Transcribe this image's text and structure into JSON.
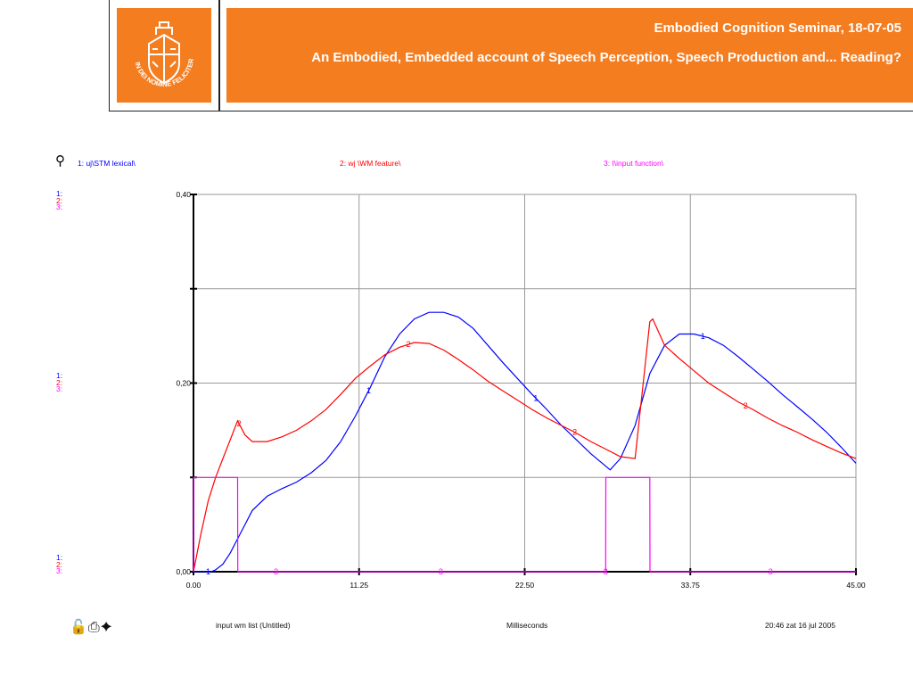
{
  "header": {
    "title_line1": "Embodied Cognition Seminar, 18-07-05",
    "title_line2": "An Embodied, Embedded account of Speech Perception, Speech Production and... Reading?",
    "logo_text": "IN DEI NOMINE FELICITER",
    "accent_color": "#f47d20"
  },
  "legend": {
    "item1": "1: uj\\STM lexical\\",
    "item2": "2: wj \\WM feature\\",
    "item3": "3: I\\input function\\",
    "icon": "pin-icon"
  },
  "scale_markers": {
    "m1": "1:",
    "m2": "2:",
    "m3": "3:"
  },
  "footer": {
    "icons": "lock-icon print-icon wand-icon",
    "left": "input wm list (Untitled)",
    "center": "Milliseconds",
    "right": "20:46   zat 16 jul 2005"
  },
  "chart_data": {
    "type": "line",
    "title": "",
    "xlabel": "Milliseconds",
    "ylabel": "",
    "xlim": [
      0,
      45
    ],
    "ylim": [
      0,
      0.4
    ],
    "x_ticks": [
      "0.00",
      "11.25",
      "22.50",
      "33.75",
      "45.00"
    ],
    "y_ticks": [
      "0,00",
      "0,20",
      "0,40"
    ],
    "grid": true,
    "legend_position": "top",
    "colors": {
      "series1": "#0000ff",
      "series2": "#ff0000",
      "series3": "#ff00ff"
    },
    "series": [
      {
        "name": "1: uj\\STM lexical\\",
        "marker": "1",
        "x": [
          0,
          1.2,
          1.5,
          2,
          2.5,
          3,
          3.5,
          4,
          5,
          6,
          7,
          8,
          9,
          10,
          11,
          12,
          13,
          14,
          15,
          16,
          17,
          18,
          19,
          20,
          21,
          22,
          23,
          24,
          25,
          26,
          27,
          28,
          28.3,
          29,
          30,
          31,
          32,
          33,
          34,
          35,
          36,
          37,
          38,
          39,
          40,
          41,
          42,
          43,
          44,
          45
        ],
        "y": [
          0,
          0,
          0.002,
          0.008,
          0.02,
          0.035,
          0.05,
          0.065,
          0.08,
          0.088,
          0.095,
          0.105,
          0.118,
          0.138,
          0.165,
          0.195,
          0.228,
          0.252,
          0.268,
          0.275,
          0.275,
          0.27,
          0.258,
          0.24,
          0.222,
          0.205,
          0.188,
          0.172,
          0.155,
          0.14,
          0.125,
          0.112,
          0.108,
          0.12,
          0.155,
          0.21,
          0.24,
          0.252,
          0.252,
          0.248,
          0.24,
          0.228,
          0.215,
          0.202,
          0.188,
          0.175,
          0.162,
          0.148,
          0.132,
          0.115
        ],
        "label_x": [
          1,
          11.9,
          23.25,
          34.6
        ]
      },
      {
        "name": "2: wj \\WM feature\\",
        "marker": "2",
        "x": [
          0,
          0.5,
          1,
          1.5,
          2,
          2.5,
          3,
          3.5,
          4,
          5,
          6,
          7,
          8,
          9,
          10,
          11,
          12,
          13,
          14,
          15,
          16,
          17,
          18,
          19,
          20,
          21,
          22,
          23,
          24,
          25,
          26,
          27,
          28,
          29,
          30,
          31,
          31.2,
          32,
          33,
          34,
          35,
          36,
          37,
          38,
          39,
          40,
          41,
          42,
          43,
          44,
          45
        ],
        "y": [
          0,
          0.04,
          0.075,
          0.1,
          0.12,
          0.14,
          0.16,
          0.145,
          0.138,
          0.138,
          0.143,
          0.15,
          0.16,
          0.172,
          0.188,
          0.205,
          0.218,
          0.23,
          0.238,
          0.243,
          0.242,
          0.235,
          0.225,
          0.214,
          0.202,
          0.192,
          0.182,
          0.172,
          0.163,
          0.155,
          0.147,
          0.138,
          0.13,
          0.122,
          0.12,
          0.265,
          0.268,
          0.24,
          0.226,
          0.213,
          0.2,
          0.19,
          0.18,
          0.172,
          0.163,
          0.155,
          0.148,
          0.14,
          0.133,
          0.126,
          0.12
        ],
        "label_x": [
          3.1,
          14.6,
          25.9,
          37.5
        ]
      },
      {
        "name": "3: I\\input function\\",
        "marker": "3",
        "x": [
          0,
          0.01,
          3,
          3.01,
          28,
          28.01,
          31,
          31.01,
          45
        ],
        "y": [
          0,
          0.1,
          0.1,
          0,
          0,
          0.1,
          0.1,
          0,
          0
        ],
        "label_x": [
          5.6,
          16.8,
          28,
          39.2
        ]
      }
    ]
  }
}
